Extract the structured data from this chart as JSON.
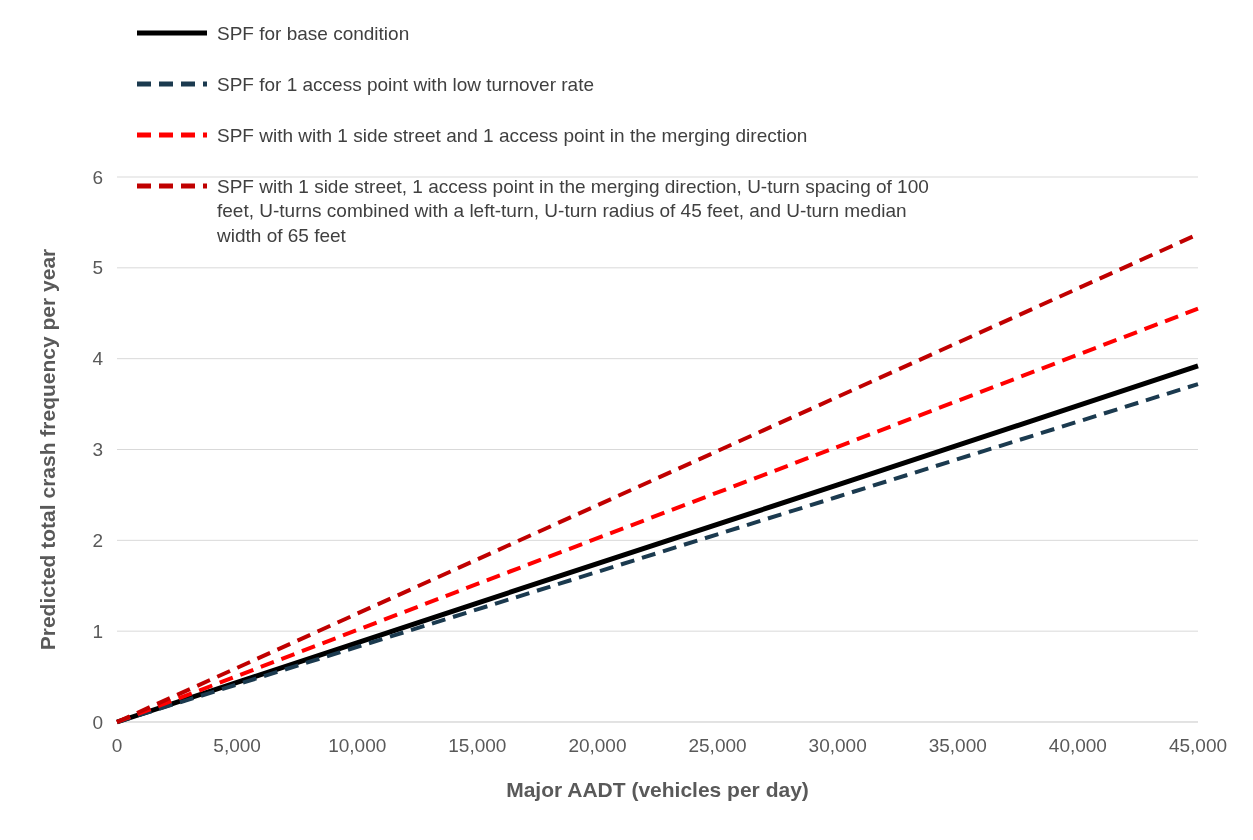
{
  "chart_data": {
    "type": "line",
    "xlabel": "Major AADT (vehicles per day)",
    "ylabel": "Predicted total crash frequency per year",
    "x": [
      0,
      15000,
      30000,
      45000
    ],
    "series": [
      {
        "name": "SPF for base condition",
        "color": "#000000",
        "values": [
          0,
          1.31,
          2.61,
          3.92
        ],
        "line_style": "solid"
      },
      {
        "name": "SPF for 1 access point with low turnover rate",
        "color": "#1b3a4f",
        "values": [
          0,
          1.24,
          2.48,
          3.72
        ],
        "line_style": "dashed"
      },
      {
        "name": "SPF with with 1 side street and 1 access point in the merging direction",
        "color": "#ff0000",
        "values": [
          0,
          1.52,
          3.03,
          4.55
        ],
        "line_style": "dashed"
      },
      {
        "name": "SPF with 1 side street, 1 access point in the merging direction, U-turn spacing of 100 feet, U-turns combined with a left-turn, U-turn radius of 45 feet, and U-turn median width of 65 feet",
        "color": "#c00000",
        "values": [
          0,
          1.79,
          3.58,
          5.37
        ],
        "line_style": "dashed"
      }
    ],
    "xlim": [
      0,
      45000
    ],
    "ylim": [
      0,
      6
    ],
    "xticks": [
      0,
      {
        "value": 5000,
        "label": "5,000"
      },
      {
        "value": 10000,
        "label": "10,000"
      },
      {
        "value": 15000,
        "label": "15,000"
      },
      {
        "value": 20000,
        "label": "20,000"
      },
      {
        "value": 25000,
        "label": "25,000"
      },
      {
        "value": 30000,
        "label": "30,000"
      },
      {
        "value": 35000,
        "label": "35,000"
      },
      {
        "value": 40000,
        "label": "40,000"
      },
      {
        "value": 45000,
        "label": "45,000"
      }
    ],
    "yticks": [
      0,
      1,
      2,
      3,
      4,
      5,
      6
    ],
    "grid": "y",
    "legend": "top left",
    "marker": "none"
  }
}
